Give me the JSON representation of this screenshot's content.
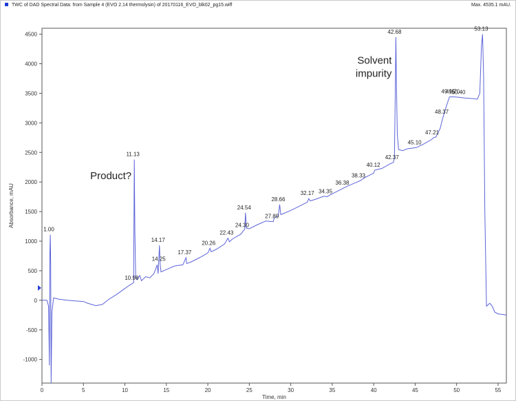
{
  "header": {
    "title": "TWC of DAD Spectral Data: from Sample 4 (EVO 2.14 thermolysin) of 20170116_EVO_blk02_pg15.wiff",
    "max": "Max. 4535.1 mAU."
  },
  "chart_data": {
    "type": "line",
    "xlabel": "Time, min",
    "ylabel": "Absorbance, mAU",
    "xlim": [
      0,
      56
    ],
    "ylim": [
      -1400,
      4600
    ],
    "x_ticks": [
      "0",
      "5",
      "10",
      "15",
      "20",
      "25",
      "30",
      "35",
      "40",
      "45",
      "50",
      "55"
    ],
    "y_ticks": [
      "-1000",
      "-500",
      "0",
      "500",
      "1000",
      "1500",
      "2000",
      "2500",
      "3000",
      "3500",
      "4000",
      "4500"
    ],
    "series_color": "#5b63d8",
    "annotations": [
      {
        "text": "Product?",
        "x": 11.13,
        "y": 2050
      },
      {
        "text": "Solvent",
        "x": 42.68,
        "y": 4000
      },
      {
        "text": "impurity",
        "x": 42.68,
        "y": 3780
      }
    ],
    "peaks": [
      {
        "label": "1.00",
        "x": 1.0,
        "y": 1110
      },
      {
        "label": "10.98",
        "x": 10.98,
        "y": 290
      },
      {
        "label": "11.13",
        "x": 11.13,
        "y": 2380
      },
      {
        "label": "14.17",
        "x": 14.17,
        "y": 930
      },
      {
        "label": "14.25",
        "x": 14.25,
        "y": 610
      },
      {
        "label": "17.37",
        "x": 17.37,
        "y": 720
      },
      {
        "label": "20.26",
        "x": 20.26,
        "y": 880
      },
      {
        "label": "22.43",
        "x": 22.43,
        "y": 1050
      },
      {
        "label": "24.30",
        "x": 24.3,
        "y": 1180
      },
      {
        "label": "24.54",
        "x": 24.54,
        "y": 1480
      },
      {
        "label": "27.89",
        "x": 27.89,
        "y": 1330
      },
      {
        "label": "28.66",
        "x": 28.66,
        "y": 1620
      },
      {
        "label": "32.17",
        "x": 32.17,
        "y": 1720
      },
      {
        "label": "34.35",
        "x": 34.35,
        "y": 1750
      },
      {
        "label": "36.38",
        "x": 36.38,
        "y": 1900
      },
      {
        "label": "38.33",
        "x": 38.33,
        "y": 2020
      },
      {
        "label": "40.12",
        "x": 40.12,
        "y": 2200
      },
      {
        "label": "42.37",
        "x": 42.37,
        "y": 2330
      },
      {
        "label": "42.68",
        "x": 42.68,
        "y": 4450
      },
      {
        "label": "45.10",
        "x": 45.1,
        "y": 2580
      },
      {
        "label": "47.21",
        "x": 47.21,
        "y": 2750
      },
      {
        "label": "48.37",
        "x": 48.37,
        "y": 3100
      },
      {
        "label": "49.15",
        "x": 49.15,
        "y": 3440
      },
      {
        "label": "49.70",
        "x": 49.7,
        "y": 3440
      },
      {
        "label": "50.40",
        "x": 50.4,
        "y": 3430
      },
      {
        "label": "53.13",
        "x": 53.13,
        "y": 4500
      }
    ],
    "trace": [
      [
        0,
        0
      ],
      [
        0.6,
        0
      ],
      [
        0.8,
        -100
      ],
      [
        0.9,
        -1100
      ],
      [
        0.95,
        800
      ],
      [
        1.0,
        1110
      ],
      [
        1.05,
        600
      ],
      [
        1.1,
        -1400
      ],
      [
        1.2,
        -200
      ],
      [
        1.4,
        40
      ],
      [
        2,
        20
      ],
      [
        3,
        0
      ],
      [
        4,
        -10
      ],
      [
        5,
        -20
      ],
      [
        5.5,
        -50
      ],
      [
        6.5,
        -90
      ],
      [
        7.3,
        -70
      ],
      [
        8,
        10
      ],
      [
        9,
        100
      ],
      [
        10,
        200
      ],
      [
        10.5,
        250
      ],
      [
        10.98,
        290
      ],
      [
        11.05,
        300
      ],
      [
        11.1,
        1500
      ],
      [
        11.13,
        2380
      ],
      [
        11.2,
        1200
      ],
      [
        11.3,
        400
      ],
      [
        11.5,
        350
      ],
      [
        11.8,
        420
      ],
      [
        12,
        330
      ],
      [
        12.5,
        400
      ],
      [
        13,
        380
      ],
      [
        13.5,
        450
      ],
      [
        13.9,
        600
      ],
      [
        14.0,
        450
      ],
      [
        14.17,
        930
      ],
      [
        14.25,
        610
      ],
      [
        14.35,
        480
      ],
      [
        15,
        520
      ],
      [
        16,
        580
      ],
      [
        17,
        600
      ],
      [
        17.3,
        700
      ],
      [
        17.37,
        720
      ],
      [
        17.45,
        620
      ],
      [
        18,
        650
      ],
      [
        19,
        720
      ],
      [
        20,
        800
      ],
      [
        20.26,
        880
      ],
      [
        20.4,
        820
      ],
      [
        21,
        860
      ],
      [
        22,
        950
      ],
      [
        22.43,
        1050
      ],
      [
        22.6,
        990
      ],
      [
        23,
        1040
      ],
      [
        24,
        1120
      ],
      [
        24.3,
        1180
      ],
      [
        24.45,
        1200
      ],
      [
        24.54,
        1480
      ],
      [
        24.65,
        1220
      ],
      [
        25,
        1210
      ],
      [
        26,
        1280
      ],
      [
        27,
        1340
      ],
      [
        27.89,
        1330
      ],
      [
        28,
        1390
      ],
      [
        28.5,
        1430
      ],
      [
        28.66,
        1620
      ],
      [
        28.8,
        1450
      ],
      [
        29,
        1460
      ],
      [
        30,
        1520
      ],
      [
        31,
        1590
      ],
      [
        32,
        1660
      ],
      [
        32.17,
        1720
      ],
      [
        32.35,
        1680
      ],
      [
        33,
        1710
      ],
      [
        34,
        1760
      ],
      [
        34.35,
        1750
      ],
      [
        35,
        1800
      ],
      [
        36,
        1870
      ],
      [
        36.38,
        1900
      ],
      [
        37,
        1940
      ],
      [
        38,
        2000
      ],
      [
        38.33,
        2020
      ],
      [
        39,
        2080
      ],
      [
        40,
        2150
      ],
      [
        40.12,
        2200
      ],
      [
        41,
        2230
      ],
      [
        42,
        2310
      ],
      [
        42.37,
        2330
      ],
      [
        42.5,
        2400
      ],
      [
        42.6,
        3500
      ],
      [
        42.68,
        4450
      ],
      [
        42.75,
        3600
      ],
      [
        42.85,
        2800
      ],
      [
        43,
        2550
      ],
      [
        43.5,
        2530
      ],
      [
        44,
        2560
      ],
      [
        45,
        2580
      ],
      [
        45.1,
        2580
      ],
      [
        46,
        2640
      ],
      [
        47,
        2720
      ],
      [
        47.21,
        2750
      ],
      [
        47.5,
        2760
      ],
      [
        48,
        2900
      ],
      [
        48.37,
        3100
      ],
      [
        48.8,
        3300
      ],
      [
        49.15,
        3440
      ],
      [
        49.7,
        3440
      ],
      [
        50.4,
        3430
      ],
      [
        51,
        3420
      ],
      [
        52,
        3410
      ],
      [
        52.5,
        3400
      ],
      [
        52.8,
        3500
      ],
      [
        53.0,
        4300
      ],
      [
        53.13,
        4500
      ],
      [
        53.25,
        3800
      ],
      [
        53.4,
        1500
      ],
      [
        53.6,
        -100
      ],
      [
        54,
        -50
      ],
      [
        54.3,
        -100
      ],
      [
        54.6,
        -200
      ],
      [
        55,
        -230
      ],
      [
        55.5,
        -240
      ],
      [
        56,
        -250
      ]
    ]
  }
}
